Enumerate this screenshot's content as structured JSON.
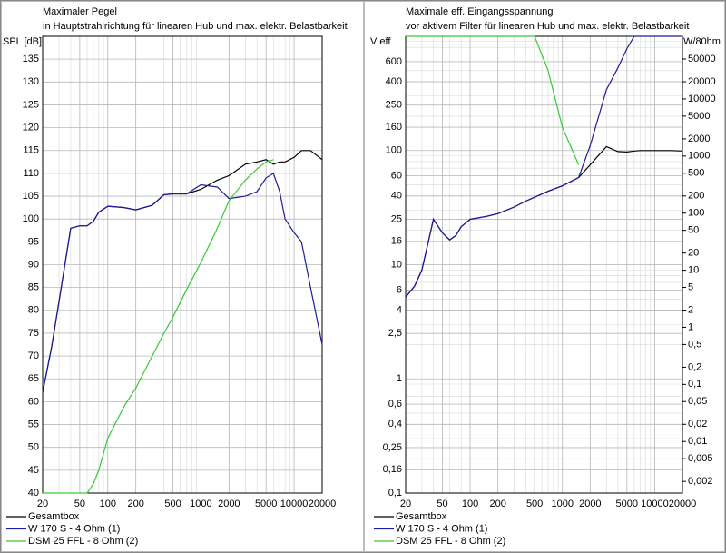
{
  "chart_data": [
    {
      "type": "line",
      "title": "Maximaler Pegel",
      "subtitle": "in Hauptstrahlrichtung für linearen Hub und max. elektr. Belastbarkeit",
      "y_label": "SPL [dB]",
      "log_x": true,
      "log_y": false,
      "grid": true,
      "x": [
        20,
        25,
        30,
        40,
        50,
        60,
        70,
        80,
        100,
        150,
        200,
        300,
        400,
        500,
        700,
        1000,
        1500,
        2000,
        3000,
        4000,
        5000,
        6000,
        7000,
        8000,
        10000,
        12000,
        15000,
        20000
      ],
      "xlim": [
        20,
        20000
      ],
      "xticks": [
        20,
        50,
        100,
        200,
        500,
        1000,
        2000,
        5000,
        10000,
        20000
      ],
      "ylim": [
        40,
        140
      ],
      "yticks": [
        40,
        45,
        50,
        55,
        60,
        65,
        70,
        75,
        80,
        85,
        90,
        95,
        100,
        105,
        110,
        115,
        120,
        125,
        130,
        135
      ],
      "series": [
        {
          "name": "Gesamtbox",
          "color": "#000000",
          "values": [
            62,
            72,
            82,
            98,
            98.5,
            98.5,
            99.5,
            101.5,
            102.8,
            102.5,
            102,
            103,
            105.3,
            105.5,
            105.5,
            106.5,
            108.5,
            109.5,
            112,
            112.5,
            113,
            112,
            112.5,
            112.5,
            113.5,
            115,
            115,
            113
          ]
        },
        {
          "name": "W 170 S - 4 Ohm (1)",
          "color": "#1c1c9c",
          "values": [
            62,
            72,
            82,
            98,
            98.5,
            98.5,
            99.5,
            101.5,
            102.8,
            102.5,
            102,
            103,
            105.3,
            105.5,
            105.5,
            107.5,
            107,
            104.5,
            105,
            106,
            109,
            110,
            106,
            100,
            97,
            95,
            85,
            72.5
          ]
        },
        {
          "name": "DSM 25 FFL - 8 Ohm (2)",
          "color": "#33cc33",
          "values": [
            40,
            40,
            40,
            40,
            40,
            40,
            42,
            45,
            52,
            59,
            63,
            70,
            75,
            78.5,
            84.5,
            90.5,
            98,
            104,
            108.5,
            111,
            112.5,
            113,
            null,
            null,
            null,
            null,
            null,
            null
          ]
        }
      ]
    },
    {
      "type": "line",
      "title": "Maximale eff. Eingangsspannung",
      "subtitle": "vor aktivem Filter für linearen Hub und max. elektr. Belastbarkeit",
      "y_label": "V eff",
      "y2_label": "W/80hm",
      "log_x": true,
      "log_y": true,
      "log_y2": true,
      "grid": true,
      "x": [
        20,
        25,
        30,
        40,
        50,
        60,
        70,
        80,
        100,
        150,
        200,
        300,
        400,
        500,
        700,
        1000,
        1500,
        2000,
        3000,
        4000,
        5000,
        6000,
        7000,
        8000,
        10000,
        12000,
        15000,
        20000
      ],
      "xlim": [
        20,
        20000
      ],
      "xticks": [
        20,
        50,
        100,
        200,
        500,
        1000,
        2000,
        5000,
        10000,
        20000
      ],
      "ylim": [
        0.1,
        1000
      ],
      "yticks": [
        {
          "value": 0.1,
          "label": "0,1"
        },
        {
          "value": 0.16,
          "label": "0,16"
        },
        {
          "value": 0.25,
          "label": "0,25"
        },
        {
          "value": 0.4,
          "label": "0,4"
        },
        {
          "value": 0.6,
          "label": "0,6"
        },
        1,
        {
          "value": 2.5,
          "label": "2,5"
        },
        4,
        6,
        10,
        16,
        25,
        40,
        60,
        100,
        160,
        250,
        400,
        600
      ],
      "y2lim": [
        0.00125,
        125000
      ],
      "y2ticks": [
        {
          "value": 0.002,
          "label": "0,002"
        },
        {
          "value": 0.005,
          "label": "0,005"
        },
        {
          "value": 0.01,
          "label": "0,01"
        },
        {
          "value": 0.02,
          "label": "0,02"
        },
        {
          "value": 0.05,
          "label": "0,05"
        },
        {
          "value": 0.1,
          "label": "0,1"
        },
        {
          "value": 0.2,
          "label": "0,2"
        },
        {
          "value": 0.5,
          "label": "0,5"
        },
        1,
        2,
        5,
        10,
        20,
        50,
        100,
        200,
        500,
        1000,
        2000,
        5000,
        10000,
        20000,
        50000
      ],
      "series": [
        {
          "name": "Gesamtbox",
          "color": "#000000",
          "values": [
            5.2,
            6.5,
            9,
            25,
            19,
            16.5,
            18,
            21.5,
            25,
            26.5,
            28,
            32,
            36,
            39,
            44,
            49,
            58,
            75,
            108,
            98,
            97,
            99,
            100,
            100,
            100,
            100,
            100,
            99
          ]
        },
        {
          "name": "W 170 S - 4 Ohm (1)",
          "color": "#1c1c9c",
          "values": [
            5.2,
            6.5,
            9,
            25,
            19,
            16.5,
            18,
            21.5,
            25,
            26.5,
            28,
            32,
            36,
            39,
            44,
            49,
            58,
            110,
            340,
            530,
            780,
            1000,
            1000,
            1000,
            1000,
            1000,
            1000,
            1000
          ]
        },
        {
          "name": "DSM 25 FFL - 8 Ohm (2)",
          "color": "#33cc33",
          "values": [
            1000,
            1000,
            1000,
            1000,
            1000,
            1000,
            1000,
            1000,
            1000,
            1000,
            1000,
            1000,
            1000,
            1000,
            500,
            160,
            75,
            null,
            null,
            null,
            null,
            null,
            null,
            null,
            null,
            null,
            null,
            null
          ]
        }
      ]
    }
  ]
}
